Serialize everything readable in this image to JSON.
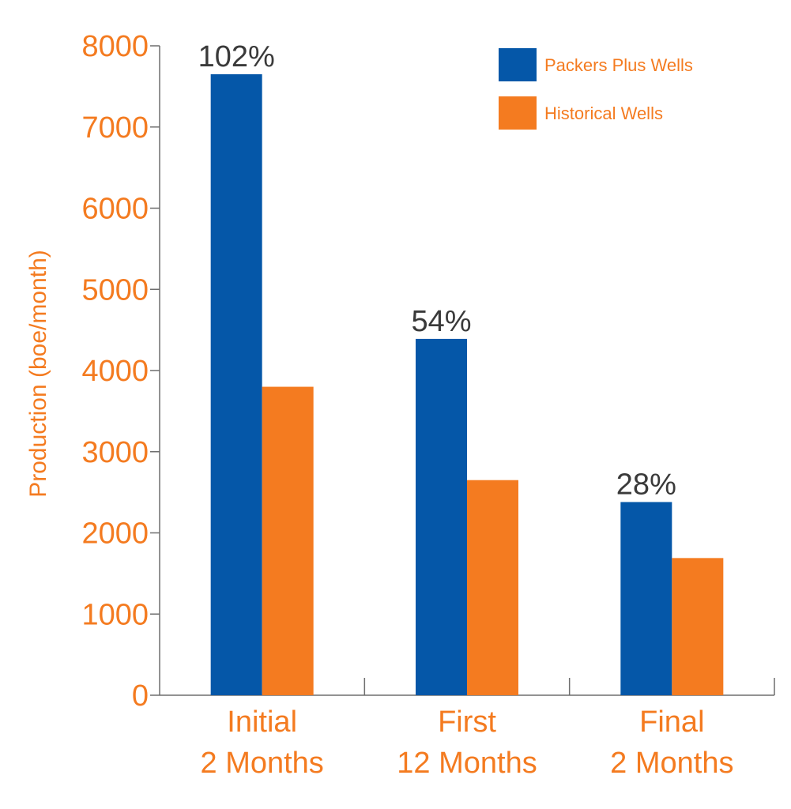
{
  "colors": {
    "series_primary": "#0557A8",
    "series_secondary": "#F47B20",
    "axis_text": "#F47B20",
    "data_label": "#3A3A3A",
    "axis_line": "#6E6E6E"
  },
  "chart_data": {
    "type": "bar",
    "title": "",
    "ylabel": "Production (boe/month)",
    "xlabel": "",
    "ylim": [
      0,
      8000
    ],
    "yticks": [
      "0",
      "1000",
      "2000",
      "3000",
      "4000",
      "5000",
      "6000",
      "7000",
      "8000"
    ],
    "grid": false,
    "legend_position": "top-right",
    "categories": [
      [
        "Initial",
        "2 Months"
      ],
      [
        "First",
        "12 Months"
      ],
      [
        "Final",
        "2 Months"
      ]
    ],
    "series": [
      {
        "name": "Packers Plus Wells",
        "values": [
          7650,
          4390,
          2380
        ]
      },
      {
        "name": "Historical Wells",
        "values": [
          3800,
          2650,
          1690
        ]
      }
    ],
    "annotations": [
      "102%",
      "54%",
      "28%"
    ]
  }
}
